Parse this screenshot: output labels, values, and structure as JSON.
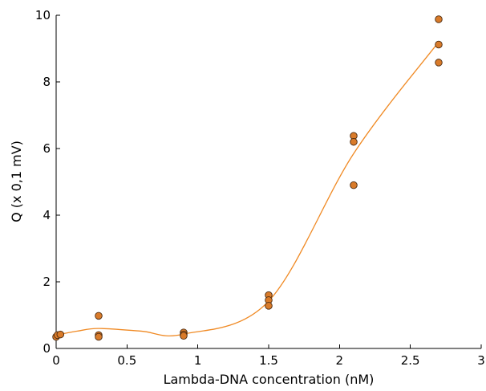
{
  "chart_data": {
    "type": "scatter",
    "title": "",
    "xlabel": "Lambda-DNA concentration (nM)",
    "ylabel": "Q (x 0,1 mV)",
    "xlim": [
      0,
      3
    ],
    "ylim": [
      0,
      10
    ],
    "x_ticks": [
      "0",
      "0.5",
      "1",
      "1.5",
      "2",
      "2.5",
      "3"
    ],
    "y_ticks": [
      "0",
      "2",
      "4",
      "6",
      "8",
      "10"
    ],
    "x_tick_values": [
      0,
      0.5,
      1,
      1.5,
      2,
      2.5,
      3
    ],
    "y_tick_values": [
      0,
      2,
      4,
      6,
      8,
      10
    ],
    "grid": false,
    "legend": "none",
    "colors": {
      "point_fill": "#d97b2a",
      "point_stroke": "#4a2a10",
      "line": "#f08a24"
    },
    "series": [
      {
        "points": [
          {
            "x": 0,
            "y": 0.35
          },
          {
            "x": 0.01,
            "y": 0.4
          },
          {
            "x": 0.03,
            "y": 0.42
          },
          {
            "x": 0.3,
            "y": 0.98
          },
          {
            "x": 0.3,
            "y": 0.4
          },
          {
            "x": 0.3,
            "y": 0.35
          },
          {
            "x": 0.9,
            "y": 0.48
          },
          {
            "x": 0.9,
            "y": 0.42
          },
          {
            "x": 0.9,
            "y": 0.38
          },
          {
            "x": 1.5,
            "y": 1.6
          },
          {
            "x": 1.5,
            "y": 1.45
          },
          {
            "x": 1.5,
            "y": 1.28
          },
          {
            "x": 2.1,
            "y": 6.38
          },
          {
            "x": 2.1,
            "y": 6.2
          },
          {
            "x": 2.1,
            "y": 4.9
          },
          {
            "x": 2.7,
            "y": 9.88
          },
          {
            "x": 2.7,
            "y": 9.12
          },
          {
            "x": 2.7,
            "y": 8.58
          }
        ]
      }
    ],
    "fit_line": [
      {
        "x": 0,
        "y": 0.4
      },
      {
        "x": 0.15,
        "y": 0.52
      },
      {
        "x": 0.3,
        "y": 0.6
      },
      {
        "x": 0.6,
        "y": 0.52
      },
      {
        "x": 0.9,
        "y": 0.43
      },
      {
        "x": 1.5,
        "y": 1.42
      },
      {
        "x": 2.1,
        "y": 5.85
      },
      {
        "x": 2.7,
        "y": 9.2
      }
    ]
  }
}
